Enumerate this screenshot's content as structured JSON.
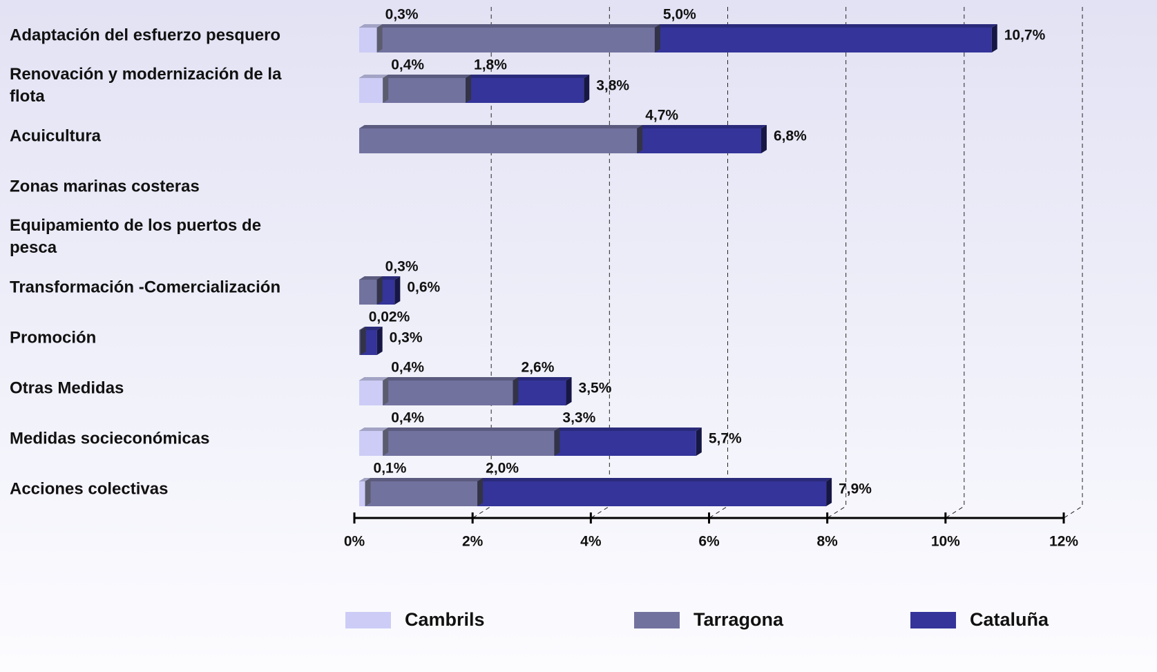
{
  "chart_data": {
    "type": "bar",
    "orientation": "horizontal",
    "overlap": true,
    "categories": [
      "Adaptación del esfuerzo pesquero",
      "Renovación y modernización de la flota",
      "Acuicultura",
      "Zonas marinas costeras",
      "Equipamiento de los puertos de pesca",
      "Transformación -Comercialización",
      "Promoción",
      "Otras Medidas",
      "Medidas socieconómicas",
      "Acciones colectivas"
    ],
    "series": [
      {
        "name": "Cambrils",
        "color": "#ccccf6",
        "values": [
          0.3,
          0.4,
          null,
          null,
          null,
          null,
          null,
          0.4,
          0.4,
          0.1
        ],
        "value_labels": [
          "0,3%",
          "0,4%",
          null,
          null,
          null,
          null,
          null,
          "0,4%",
          "0,4%",
          "0,1%"
        ]
      },
      {
        "name": "Tarragona",
        "color": "#72729f",
        "values": [
          5.0,
          1.8,
          4.7,
          null,
          null,
          0.3,
          0.02,
          2.6,
          3.3,
          2.0
        ],
        "value_labels": [
          "5,0%",
          "1,8%",
          "4,7%",
          null,
          null,
          "0,3%",
          "0,02%",
          "2,6%",
          "3,3%",
          "2,0%"
        ]
      },
      {
        "name": "Cataluña",
        "color": "#34349a",
        "values": [
          10.7,
          3.8,
          6.8,
          null,
          null,
          0.6,
          0.3,
          3.5,
          5.7,
          7.9
        ],
        "value_labels": [
          "10,7%",
          "3,8%",
          "6,8%",
          null,
          null,
          "0,6%",
          "0,3%",
          "3,5%",
          "5,7%",
          "7,9%"
        ]
      }
    ],
    "xlim": [
      0,
      12
    ],
    "xticks": [
      {
        "value": 0,
        "label": "0%"
      },
      {
        "value": 2,
        "label": "2%"
      },
      {
        "value": 4,
        "label": "4%"
      },
      {
        "value": 6,
        "label": "6%"
      },
      {
        "value": 8,
        "label": "8%"
      },
      {
        "value": 10,
        "label": "10%"
      },
      {
        "value": 12,
        "label": "12%"
      }
    ],
    "grid": true
  }
}
